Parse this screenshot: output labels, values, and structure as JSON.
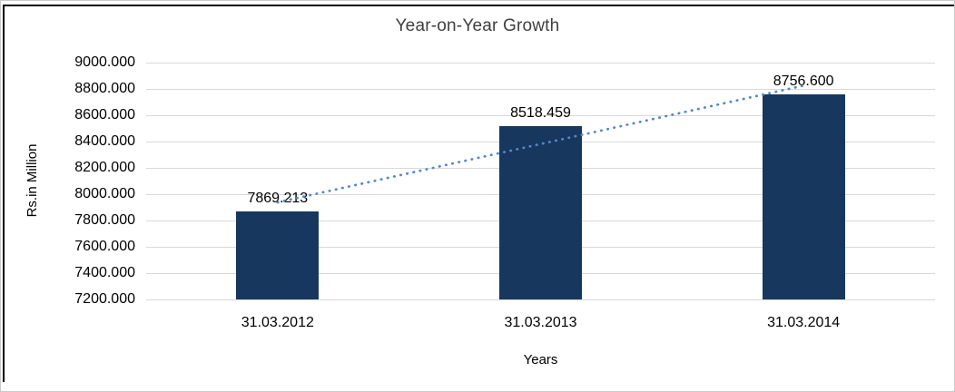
{
  "window": {
    "background": "#ffffff",
    "outer_border_color": "#c9c9c9",
    "frame_border_color": "#000000"
  },
  "chart_data": {
    "type": "bar",
    "title": "Year-on-Year Growth",
    "xlabel": "Years",
    "ylabel": "Rs.in Million",
    "categories": [
      "31.03.2012",
      "31.03.2013",
      "31.03.2014"
    ],
    "values": [
      7869.213,
      8518.459,
      8756.6
    ],
    "value_labels": [
      "7869.213",
      "8518.459",
      "8756.600"
    ],
    "ylim": [
      7200,
      9000
    ],
    "y_tick_step": 200,
    "y_tick_labels": [
      "9000.000",
      "8800.000",
      "8600.000",
      "8400.000",
      "8200.000",
      "8000.000",
      "7800.000",
      "7600.000",
      "7400.000",
      "7200.000"
    ],
    "grid": true,
    "legend_position": "none",
    "bar_color": "#17375e",
    "gridline_color": "#d9d9d9",
    "axis_text_color": "#000000",
    "title_color": "#3f3f3f",
    "trendline": {
      "type": "linear",
      "style": "dotted",
      "color": "#5588c7",
      "fit_start_value": 7937.73,
      "fit_end_value": 8825.12
    }
  }
}
